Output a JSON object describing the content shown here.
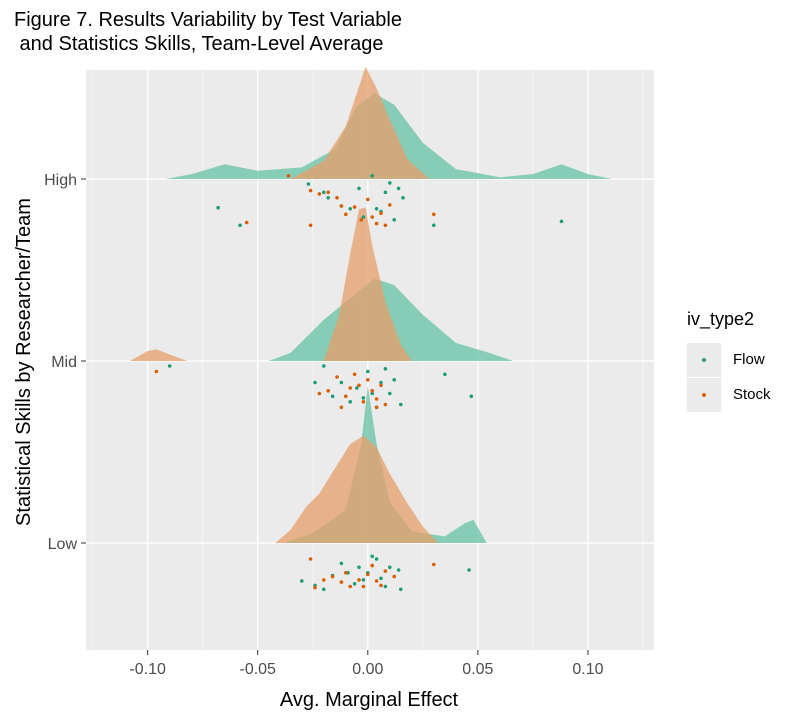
{
  "title": "Figure 7. Results Variability by Test Variable\n and Statistics Skills, Team-Level Average",
  "legend": {
    "title": "iv_type2",
    "items": [
      {
        "label": "Flow",
        "color": "#1b9e77"
      },
      {
        "label": "Stock",
        "color": "#d95f02"
      }
    ]
  },
  "chart_data": {
    "type": "ridgeline-density-with-jittered-points",
    "xlabel": "Avg. Marginal Effect",
    "ylabel": "Statistical Skills by Researcher/Team",
    "xlim": [
      -0.128,
      0.13
    ],
    "x_ticks": [
      -0.1,
      -0.05,
      0.0,
      0.05,
      0.1
    ],
    "x_tick_labels": [
      "-0.10",
      "-0.05",
      "0.00",
      "0.05",
      "0.10"
    ],
    "categories": [
      "Low",
      "Mid",
      "High"
    ],
    "grid": true,
    "legend_position": "right",
    "series": [
      {
        "name": "Flow",
        "color": "#1b9e77",
        "fill": "#66c2a5",
        "densities": {
          "High": [
            [
              -0.092,
              0.0
            ],
            [
              -0.08,
              0.03
            ],
            [
              -0.065,
              0.09
            ],
            [
              -0.05,
              0.05
            ],
            [
              -0.03,
              0.07
            ],
            [
              -0.015,
              0.18
            ],
            [
              -0.005,
              0.44
            ],
            [
              0.003,
              0.52
            ],
            [
              0.012,
              0.45
            ],
            [
              0.025,
              0.22
            ],
            [
              0.04,
              0.06
            ],
            [
              0.06,
              0.01
            ],
            [
              0.075,
              0.03
            ],
            [
              0.088,
              0.09
            ],
            [
              0.1,
              0.03
            ],
            [
              0.111,
              0.0
            ]
          ],
          "Mid": [
            [
              -0.045,
              0.0
            ],
            [
              -0.035,
              0.05
            ],
            [
              -0.02,
              0.25
            ],
            [
              -0.008,
              0.38
            ],
            [
              0.003,
              0.5
            ],
            [
              0.012,
              0.46
            ],
            [
              0.025,
              0.28
            ],
            [
              0.04,
              0.11
            ],
            [
              0.055,
              0.05
            ],
            [
              0.066,
              0.0
            ]
          ],
          "Low": [
            [
              -0.038,
              0.0
            ],
            [
              -0.025,
              0.06
            ],
            [
              -0.01,
              0.2
            ],
            [
              -0.003,
              0.6
            ],
            [
              0.0,
              0.95
            ],
            [
              0.004,
              0.6
            ],
            [
              0.01,
              0.25
            ],
            [
              0.02,
              0.07
            ],
            [
              0.035,
              0.04
            ],
            [
              0.044,
              0.12
            ],
            [
              0.048,
              0.14
            ],
            [
              0.054,
              0.0
            ]
          ]
        },
        "points": {
          "High": [
            [
              -0.068,
              0.23
            ],
            [
              -0.058,
              0.55
            ],
            [
              -0.027,
              -0.2
            ],
            [
              -0.02,
              -0.05
            ],
            [
              -0.018,
              0.05
            ],
            [
              -0.012,
              0.2
            ],
            [
              -0.008,
              0.25
            ],
            [
              -0.004,
              -0.12
            ],
            [
              -0.002,
              0.4
            ],
            [
              0.002,
              -0.35
            ],
            [
              0.004,
              0.25
            ],
            [
              0.006,
              0.3
            ],
            [
              0.008,
              -0.05
            ],
            [
              0.01,
              -0.22
            ],
            [
              0.012,
              0.45
            ],
            [
              0.014,
              -0.12
            ],
            [
              0.016,
              0.05
            ],
            [
              0.03,
              0.55
            ],
            [
              0.088,
              0.48
            ]
          ],
          "Mid": [
            [
              -0.09,
              -0.2
            ],
            [
              -0.024,
              0.1
            ],
            [
              -0.02,
              -0.2
            ],
            [
              -0.016,
              0.35
            ],
            [
              -0.012,
              0.1
            ],
            [
              -0.008,
              0.45
            ],
            [
              -0.005,
              0.2
            ],
            [
              -0.002,
              0.38
            ],
            [
              0.0,
              -0.1
            ],
            [
              0.002,
              0.3
            ],
            [
              0.004,
              0.55
            ],
            [
              0.006,
              0.1
            ],
            [
              0.008,
              -0.15
            ],
            [
              0.01,
              0.3
            ],
            [
              0.012,
              0.05
            ],
            [
              0.015,
              0.5
            ],
            [
              0.035,
              -0.05
            ],
            [
              0.047,
              0.35
            ]
          ],
          "Low": [
            [
              -0.03,
              0.4
            ],
            [
              -0.024,
              0.48
            ],
            [
              -0.02,
              0.55
            ],
            [
              -0.016,
              0.3
            ],
            [
              -0.012,
              0.08
            ],
            [
              -0.009,
              0.25
            ],
            [
              -0.006,
              0.45
            ],
            [
              -0.004,
              0.15
            ],
            [
              -0.002,
              0.38
            ],
            [
              0.0,
              0.25
            ],
            [
              0.002,
              -0.05
            ],
            [
              0.004,
              0.0
            ],
            [
              0.006,
              0.35
            ],
            [
              0.008,
              0.5
            ],
            [
              0.01,
              0.15
            ],
            [
              0.014,
              0.2
            ],
            [
              0.015,
              0.55
            ],
            [
              0.046,
              0.2
            ]
          ]
        }
      },
      {
        "name": "Stock",
        "color": "#d95f02",
        "fill": "#e69f6a",
        "densities": {
          "High": [
            [
              -0.035,
              0.0
            ],
            [
              -0.02,
              0.11
            ],
            [
              -0.01,
              0.32
            ],
            [
              -0.004,
              0.56
            ],
            [
              -0.001,
              0.68
            ],
            [
              0.004,
              0.55
            ],
            [
              0.01,
              0.36
            ],
            [
              0.018,
              0.12
            ],
            [
              0.028,
              0.0
            ]
          ],
          "Mid": [
            [
              -0.108,
              0.0
            ],
            [
              -0.1,
              0.06
            ],
            [
              -0.096,
              0.07
            ],
            [
              -0.088,
              0.03
            ],
            [
              -0.082,
              0.0
            ],
            [
              -0.02,
              0.0
            ],
            [
              -0.013,
              0.28
            ],
            [
              -0.008,
              0.65
            ],
            [
              -0.004,
              0.92
            ],
            [
              -0.001,
              0.93
            ],
            [
              0.002,
              0.7
            ],
            [
              0.008,
              0.36
            ],
            [
              0.015,
              0.1
            ],
            [
              0.02,
              0.0
            ]
          ],
          "Low": [
            [
              -0.042,
              0.0
            ],
            [
              -0.035,
              0.08
            ],
            [
              -0.028,
              0.22
            ],
            [
              -0.022,
              0.3
            ],
            [
              -0.016,
              0.43
            ],
            [
              -0.008,
              0.6
            ],
            [
              -0.002,
              0.65
            ],
            [
              0.004,
              0.58
            ],
            [
              0.01,
              0.42
            ],
            [
              0.018,
              0.24
            ],
            [
              0.025,
              0.1
            ],
            [
              0.032,
              0.0
            ]
          ]
        },
        "points": {
          "High": [
            [
              -0.055,
              0.5
            ],
            [
              -0.036,
              -0.35
            ],
            [
              -0.026,
              -0.08
            ],
            [
              -0.022,
              -0.02
            ],
            [
              -0.018,
              -0.05
            ],
            [
              -0.014,
              0.05
            ],
            [
              -0.012,
              0.2
            ],
            [
              -0.01,
              0.35
            ],
            [
              -0.006,
              0.22
            ],
            [
              -0.003,
              0.45
            ],
            [
              0.0,
              0.08
            ],
            [
              0.002,
              0.4
            ],
            [
              0.004,
              0.52
            ],
            [
              0.006,
              0.33
            ],
            [
              0.008,
              0.55
            ],
            [
              0.01,
              0.18
            ],
            [
              0.03,
              0.35
            ],
            [
              -0.026,
              0.55
            ]
          ],
          "Mid": [
            [
              -0.096,
              -0.1
            ],
            [
              -0.022,
              0.3
            ],
            [
              -0.018,
              0.25
            ],
            [
              -0.014,
              0.0
            ],
            [
              -0.01,
              0.35
            ],
            [
              -0.008,
              0.2
            ],
            [
              -0.006,
              -0.05
            ],
            [
              -0.004,
              0.15
            ],
            [
              -0.002,
              0.45
            ],
            [
              0.0,
              0.05
            ],
            [
              0.002,
              0.25
            ],
            [
              0.004,
              0.4
            ],
            [
              0.006,
              0.15
            ],
            [
              0.008,
              0.5
            ],
            [
              0.004,
              0.55
            ],
            [
              -0.012,
              0.55
            ]
          ],
          "Low": [
            [
              -0.026,
              0.0
            ],
            [
              -0.024,
              0.52
            ],
            [
              -0.02,
              0.38
            ],
            [
              -0.016,
              0.32
            ],
            [
              -0.012,
              0.42
            ],
            [
              -0.01,
              0.25
            ],
            [
              -0.008,
              0.5
            ],
            [
              -0.004,
              0.38
            ],
            [
              -0.002,
              0.5
            ],
            [
              0.0,
              0.28
            ],
            [
              0.002,
              0.12
            ],
            [
              0.004,
              0.4
            ],
            [
              0.006,
              0.48
            ],
            [
              0.008,
              0.22
            ],
            [
              0.012,
              0.32
            ],
            [
              0.03,
              0.1
            ]
          ]
        }
      }
    ]
  }
}
